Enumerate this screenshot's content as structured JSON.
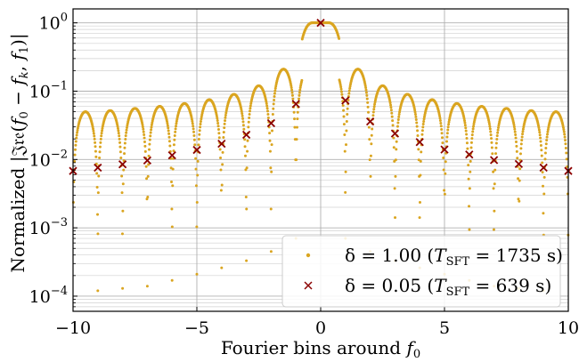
{
  "chart_data": {
    "type": "scatter",
    "xlabel": "Fourier bins around f₀",
    "ylabel": "Normalized |ℑ𝔯𝔢(f₀ − fₖ, f₁)|",
    "xlim": [
      -10,
      10
    ],
    "ylim": [
      6e-05,
      1.6
    ],
    "yscale": "log",
    "grid": true,
    "legend_position": "bottom-right",
    "x_ticks": [
      {
        "value": -10,
        "label": "−10"
      },
      {
        "value": -5,
        "label": "−5"
      },
      {
        "value": 0,
        "label": "0"
      },
      {
        "value": 5,
        "label": "5"
      },
      {
        "value": 10,
        "label": "10"
      }
    ],
    "y_ticks": [
      {
        "value": 1,
        "base": "10",
        "exp": "0"
      },
      {
        "value": 0.1,
        "base": "10",
        "exp": "−1"
      },
      {
        "value": 0.01,
        "base": "10",
        "exp": "−2"
      },
      {
        "value": 0.001,
        "base": "10",
        "exp": "−3"
      },
      {
        "value": 0.0001,
        "base": "10",
        "exp": "−4"
      }
    ],
    "series": [
      {
        "name": "δ = 1.00 (T_SFT = 1735 s)",
        "label_main": "δ = 1.00 (",
        "label_T": "T",
        "label_sub": "SFT",
        "label_rest": " = 1735 s)",
        "marker": "dot",
        "color": "#DAA520",
        "center_plateau": [
          -0.35,
          0.35
        ],
        "lobe_centers": [
          -9.5,
          -8.5,
          -7.5,
          -6.5,
          -5.5,
          -4.5,
          -3.5,
          -2.5,
          -1.5,
          0,
          1.5,
          2.5,
          3.5,
          4.5,
          5.5,
          6.5,
          7.5,
          8.5,
          9.5
        ],
        "lobe_peaks": [
          0.05,
          0.052,
          0.056,
          0.06,
          0.066,
          0.075,
          0.09,
          0.12,
          0.21,
          1.0,
          0.21,
          0.12,
          0.09,
          0.075,
          0.066,
          0.06,
          0.056,
          0.052,
          0.05
        ],
        "min_envelope": [
          {
            "x": -9,
            "y": 0.00012
          },
          {
            "x": -8,
            "y": 0.00013
          },
          {
            "x": -7,
            "y": 0.00014
          },
          {
            "x": -6,
            "y": 0.00017
          },
          {
            "x": -5,
            "y": 0.00021
          },
          {
            "x": -4,
            "y": 0.00026
          },
          {
            "x": -3,
            "y": 0.00033
          },
          {
            "x": -2,
            "y": 0.00045
          },
          {
            "x": -1,
            "y": 0.0007
          }
        ]
      },
      {
        "name": "δ = 0.05 (T_SFT = 639 s)",
        "label_main": "δ = 0.05 (",
        "label_T": "T",
        "label_sub": "SFT",
        "label_rest": " = 639 s)",
        "marker": "x",
        "color": "#8B0000",
        "x": [
          -10,
          -9,
          -8,
          -7,
          -6,
          -5,
          -4,
          -3,
          -2,
          -1,
          0,
          1,
          2,
          3,
          4,
          5,
          6,
          7,
          8,
          9,
          10
        ],
        "y": [
          0.0068,
          0.0076,
          0.0085,
          0.0097,
          0.0115,
          0.0138,
          0.017,
          0.023,
          0.034,
          0.065,
          1.0,
          0.073,
          0.036,
          0.024,
          0.018,
          0.014,
          0.0118,
          0.0098,
          0.0086,
          0.0076,
          0.0068
        ]
      }
    ]
  }
}
